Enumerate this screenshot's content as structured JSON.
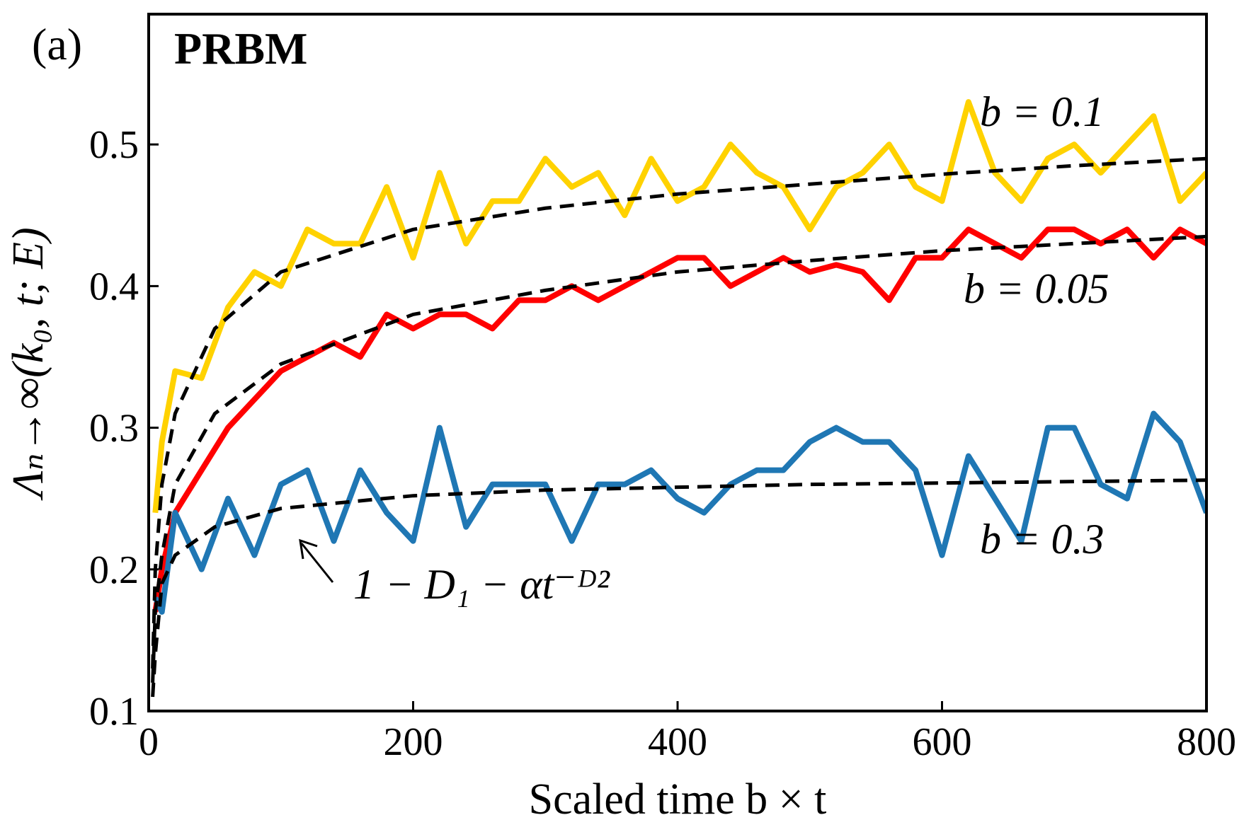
{
  "chart_data": {
    "type": "line",
    "xlabel": "Scaled time b × t",
    "ylabel": "Λₙ→∞(k₀, t; E)",
    "annotations": [
      "(a)",
      "PRBM",
      "b = 0.1",
      "b = 0.05",
      "b = 0.3",
      "1 − D₁ − αt⁻ᴰ²"
    ],
    "x": [
      5,
      10,
      20,
      40,
      60,
      80,
      100,
      120,
      140,
      160,
      180,
      200,
      220,
      240,
      260,
      280,
      300,
      320,
      340,
      360,
      380,
      400,
      420,
      440,
      460,
      480,
      500,
      520,
      540,
      560,
      580,
      600,
      620,
      640,
      660,
      680,
      700,
      720,
      740,
      760,
      780,
      800
    ],
    "xlim": [
      0,
      800
    ],
    "xticks": [
      0,
      200,
      400,
      600,
      800
    ],
    "ylim": [
      0.1,
      0.592
    ],
    "yticks": [
      0.1,
      0.2,
      0.3,
      0.4,
      0.5
    ],
    "series": [
      {
        "color": "#ffd200",
        "values": [
          0.24,
          0.29,
          0.34,
          0.335,
          0.385,
          0.41,
          0.4,
          0.44,
          0.43,
          0.43,
          0.47,
          0.42,
          0.48,
          0.43,
          0.46,
          0.46,
          0.49,
          0.47,
          0.48,
          0.45,
          0.49,
          0.46,
          0.47,
          0.5,
          0.48,
          0.47,
          0.44,
          0.47,
          0.48,
          0.5,
          0.47,
          0.46,
          0.53,
          0.48,
          0.46,
          0.49,
          0.5,
          0.48,
          0.5,
          0.52,
          0.46,
          0.48
        ]
      },
      {
        "color": "#ff0000",
        "values": [
          0.17,
          0.2,
          0.24,
          0.27,
          0.3,
          0.32,
          0.34,
          0.35,
          0.36,
          0.35,
          0.38,
          0.37,
          0.38,
          0.38,
          0.37,
          0.39,
          0.39,
          0.4,
          0.39,
          0.4,
          0.41,
          0.42,
          0.42,
          0.4,
          0.41,
          0.42,
          0.41,
          0.415,
          0.41,
          0.39,
          0.42,
          0.42,
          0.44,
          0.43,
          0.42,
          0.44,
          0.44,
          0.43,
          0.44,
          0.42,
          0.44,
          0.43
        ]
      },
      {
        "color": "#1f77b4",
        "values": [
          0.18,
          0.17,
          0.24,
          0.2,
          0.25,
          0.21,
          0.26,
          0.27,
          0.22,
          0.27,
          0.24,
          0.22,
          0.3,
          0.23,
          0.26,
          0.26,
          0.26,
          0.22,
          0.26,
          0.26,
          0.27,
          0.25,
          0.24,
          0.26,
          0.27,
          0.27,
          0.29,
          0.3,
          0.29,
          0.29,
          0.27,
          0.21,
          0.28,
          0.25,
          0.22,
          0.3,
          0.3,
          0.26,
          0.25,
          0.31,
          0.29,
          0.24
        ]
      },
      {
        "color": "#000000",
        "dashed": true,
        "x": [
          3,
          5,
          10,
          20,
          50,
          100,
          200,
          300,
          400,
          500,
          600,
          700,
          800
        ],
        "values": [
          0.13,
          0.2,
          0.26,
          0.31,
          0.37,
          0.41,
          0.44,
          0.455,
          0.465,
          0.472,
          0.479,
          0.485,
          0.49
        ]
      },
      {
        "color": "#000000",
        "dashed": true,
        "x": [
          3,
          5,
          10,
          20,
          50,
          100,
          200,
          300,
          400,
          500,
          600,
          700,
          800
        ],
        "values": [
          0.12,
          0.17,
          0.21,
          0.26,
          0.31,
          0.345,
          0.38,
          0.397,
          0.41,
          0.418,
          0.425,
          0.43,
          0.435
        ]
      },
      {
        "color": "#000000",
        "dashed": true,
        "x": [
          3,
          5,
          10,
          20,
          50,
          100,
          200,
          300,
          400,
          500,
          600,
          700,
          800
        ],
        "values": [
          0.11,
          0.14,
          0.19,
          0.21,
          0.23,
          0.243,
          0.252,
          0.256,
          0.258,
          0.26,
          0.261,
          0.262,
          0.263
        ]
      }
    ]
  }
}
